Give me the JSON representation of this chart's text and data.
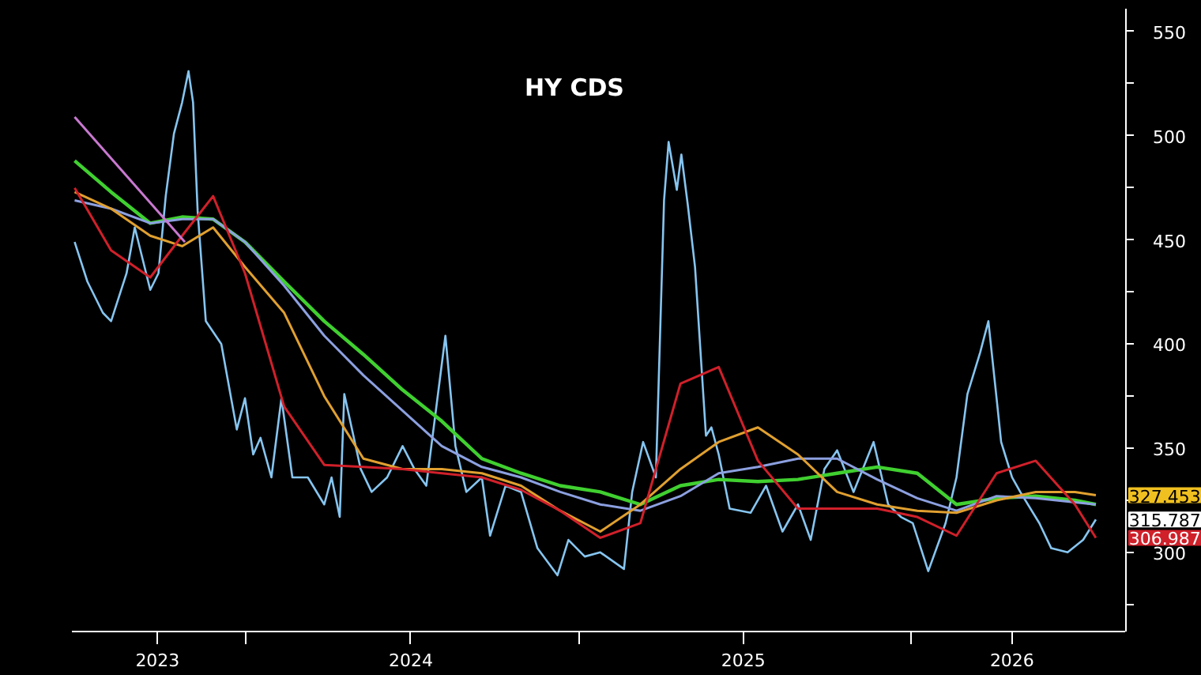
{
  "chart_data": {
    "type": "line",
    "title": "HY CDS",
    "xlim": [
      "2023-06-25",
      "2026-08-25"
    ],
    "xticks": [
      {
        "value": "2023-09-27",
        "label": "2023"
      },
      {
        "value": "2024-01-01",
        "label": null
      },
      {
        "value": "2024-07-01",
        "label": "2024"
      },
      {
        "value": "2025-01-01",
        "label": null
      },
      {
        "value": "2025-07-01",
        "label": "2025"
      },
      {
        "value": "2026-01-01",
        "label": null
      },
      {
        "value": "2026-04-22",
        "label": "2026"
      }
    ],
    "ylim": [
      262,
      561
    ],
    "yticks": [
      {
        "value": 275,
        "label": null
      },
      300,
      {
        "value": 325,
        "label": null
      },
      350,
      {
        "value": 375,
        "label": null
      },
      400,
      {
        "value": 425,
        "label": null
      },
      450,
      {
        "value": 475,
        "label": null
      },
      500,
      {
        "value": 525,
        "label": null
      },
      550
    ],
    "grid": false,
    "marker": "none",
    "series": [
      {
        "color": "#86c5f0",
        "x": [
          "2023-06-28",
          "2023-07-12",
          "2023-07-29",
          "2023-08-07",
          "2023-08-24",
          "2023-09-02",
          "2023-09-19",
          "2023-09-28",
          "2023-10-06",
          "2023-10-15",
          "2023-10-24",
          "2023-10-31",
          "2023-11-05",
          "2023-11-10",
          "2023-11-19",
          "2023-12-06",
          "2023-12-23",
          "2024-01-01",
          "2024-01-10",
          "2024-01-18",
          "2024-01-30",
          "2024-02-10",
          "2024-02-22",
          "2024-03-10",
          "2024-03-28",
          "2024-04-05",
          "2024-04-14",
          "2024-04-19",
          "2024-05-07",
          "2024-05-19",
          "2024-06-05",
          "2024-06-22",
          "2024-07-05",
          "2024-07-18",
          "2024-08-08",
          "2024-08-19",
          "2024-08-31",
          "2024-09-17",
          "2024-09-26",
          "2024-10-13",
          "2024-10-30",
          "2024-11-17",
          "2024-12-09",
          "2024-12-21",
          "2025-01-08",
          "2025-01-25",
          "2025-02-20",
          "2025-03-01",
          "2025-03-13",
          "2025-03-27",
          "2025-04-05",
          "2025-04-10",
          "2025-04-19",
          "2025-04-24",
          "2025-05-01",
          "2025-05-09",
          "2025-05-21",
          "2025-05-27",
          "2025-06-04",
          "2025-06-16",
          "2025-07-09",
          "2025-07-26",
          "2025-08-13",
          "2025-08-30",
          "2025-09-13",
          "2025-09-28",
          "2025-10-12",
          "2025-10-30",
          "2025-11-21",
          "2025-12-07",
          "2025-12-21",
          "2026-01-03",
          "2026-01-20",
          "2026-02-08",
          "2026-02-20",
          "2026-03-04",
          "2026-03-18",
          "2026-03-27",
          "2026-04-05",
          "2026-04-10",
          "2026-04-22",
          "2026-05-01",
          "2026-05-22",
          "2026-06-04",
          "2026-06-22",
          "2026-07-09",
          "2026-07-23"
        ],
        "values": [
          449,
          430,
          415,
          411,
          434,
          456,
          426,
          434,
          471,
          501,
          516,
          531,
          516,
          464,
          411,
          400,
          359,
          374,
          347,
          355,
          336,
          374,
          336,
          336,
          323,
          336,
          317,
          376,
          340,
          329,
          336,
          351,
          340,
          332,
          404,
          351,
          329,
          336,
          308,
          332,
          329,
          302,
          289,
          306,
          298,
          300,
          292,
          329,
          353,
          336,
          469,
          497,
          474,
          491,
          467,
          437,
          356,
          360,
          347,
          321,
          319,
          332,
          310,
          323,
          306,
          340,
          349,
          329,
          353,
          323,
          317,
          314,
          291,
          314,
          336,
          376,
          396,
          411,
          374,
          353,
          336,
          329,
          314,
          302,
          300,
          306,
          315.787
        ],
        "value_labels": [
          null,
          null,
          null,
          null,
          null,
          null,
          null,
          null,
          null,
          null,
          null,
          null,
          null,
          null,
          null,
          null,
          null,
          null,
          null,
          null,
          null,
          null,
          null,
          null,
          null,
          null,
          null,
          null,
          null,
          null,
          null,
          null,
          null,
          null,
          null,
          null,
          null,
          null,
          null,
          null,
          null,
          null,
          null,
          null,
          null,
          null,
          null,
          null,
          null,
          null,
          null,
          null,
          null,
          null,
          null,
          null,
          null,
          null,
          null,
          null,
          null,
          null,
          null,
          null,
          null,
          null,
          null,
          null,
          null,
          null,
          null,
          null,
          null,
          null,
          null,
          null,
          null,
          null,
          null,
          null,
          null,
          null,
          null,
          null,
          null,
          null,
          "315.787"
        ]
      },
      {
        "color": "#40d030",
        "x": [
          "2023-06-28",
          "2023-08-07",
          "2023-09-19",
          "2023-10-24",
          "2023-11-27",
          "2024-01-01",
          "2024-02-13",
          "2024-03-28",
          "2024-05-10",
          "2024-06-22",
          "2024-08-04",
          "2024-09-17",
          "2024-10-30",
          "2024-12-12",
          "2025-01-25",
          "2025-03-10",
          "2025-04-23",
          "2025-06-04",
          "2025-07-17",
          "2025-08-30",
          "2025-10-12",
          "2025-11-25",
          "2026-01-08",
          "2026-02-20",
          "2026-04-05",
          "2026-05-18",
          "2026-06-30",
          "2026-07-23"
        ],
        "values": [
          488,
          473,
          458,
          461,
          460,
          449,
          430,
          411,
          395,
          378,
          363,
          345,
          338,
          332,
          329,
          323,
          332,
          335,
          334,
          335,
          338,
          341,
          338,
          323,
          326,
          327,
          325,
          323
        ]
      },
      {
        "color": "#8ca0e0",
        "x": [
          "2023-06-28",
          "2023-08-07",
          "2023-09-19",
          "2023-10-24",
          "2023-11-27",
          "2024-01-01",
          "2024-02-13",
          "2024-03-28",
          "2024-05-10",
          "2024-06-22",
          "2024-08-04",
          "2024-09-17",
          "2024-10-30",
          "2024-12-12",
          "2025-01-25",
          "2025-03-10",
          "2025-04-23",
          "2025-06-04",
          "2025-07-17",
          "2025-08-30",
          "2025-10-12",
          "2025-11-25",
          "2026-01-08",
          "2026-02-20",
          "2026-04-05",
          "2026-05-18",
          "2026-06-30",
          "2026-07-23"
        ],
        "values": [
          469,
          465,
          458,
          460,
          460,
          449,
          428,
          404,
          385,
          368,
          351,
          341,
          336,
          329,
          323,
          320,
          327,
          338,
          341,
          345,
          345,
          335,
          326,
          320,
          327,
          326,
          324,
          323
        ]
      },
      {
        "color": "#e0a030",
        "x": [
          "2023-06-28",
          "2023-08-07",
          "2023-09-19",
          "2023-10-24",
          "2023-11-27",
          "2024-01-01",
          "2024-02-13",
          "2024-03-28",
          "2024-05-10",
          "2024-06-22",
          "2024-08-04",
          "2024-09-17",
          "2024-10-30",
          "2024-12-12",
          "2025-01-25",
          "2025-03-10",
          "2025-04-23",
          "2025-06-04",
          "2025-07-17",
          "2025-08-30",
          "2025-10-12",
          "2025-11-25",
          "2026-01-08",
          "2026-02-20",
          "2026-04-05",
          "2026-05-18",
          "2026-06-30",
          "2026-07-23"
        ],
        "values": [
          473,
          465,
          452,
          447,
          456,
          437,
          415,
          375,
          345,
          340,
          340,
          338,
          332,
          320,
          310,
          323,
          340,
          353,
          360,
          347,
          329,
          323,
          320,
          319,
          325,
          329,
          329,
          327.453
        ],
        "value_labels": [
          null,
          null,
          null,
          null,
          null,
          null,
          null,
          null,
          null,
          null,
          null,
          null,
          null,
          null,
          null,
          null,
          null,
          null,
          null,
          null,
          null,
          null,
          null,
          null,
          null,
          null,
          null,
          "327.453"
        ]
      },
      {
        "color": "#d0202a",
        "x": [
          "2023-06-28",
          "2023-08-07",
          "2023-09-19",
          "2023-10-24",
          "2023-11-27",
          "2024-01-01",
          "2024-02-13",
          "2024-03-28",
          "2024-05-10",
          "2024-06-22",
          "2024-08-04",
          "2024-09-17",
          "2024-10-30",
          "2024-12-12",
          "2025-01-25",
          "2025-03-10",
          "2025-04-23",
          "2025-06-04",
          "2025-07-17",
          "2025-08-30",
          "2025-10-12",
          "2025-11-25",
          "2026-01-08",
          "2026-02-20",
          "2026-04-05",
          "2026-05-18",
          "2026-06-30",
          "2026-07-23"
        ],
        "values": [
          475,
          445,
          432,
          452,
          471,
          434,
          370,
          342,
          341,
          340,
          338,
          336,
          330,
          320,
          307,
          314,
          381,
          389,
          344,
          321,
          321,
          321,
          317,
          308,
          338,
          344,
          323,
          306.987
        ],
        "value_labels": [
          null,
          null,
          null,
          null,
          null,
          null,
          null,
          null,
          null,
          null,
          null,
          null,
          null,
          null,
          null,
          null,
          null,
          null,
          null,
          null,
          null,
          null,
          null,
          null,
          null,
          null,
          null,
          "306.987"
        ]
      },
      {
        "color": "#c878d0",
        "x": [
          "2023-06-28",
          "2023-10-27"
        ],
        "values": [
          509,
          449
        ]
      }
    ],
    "line_style": "solid"
  }
}
